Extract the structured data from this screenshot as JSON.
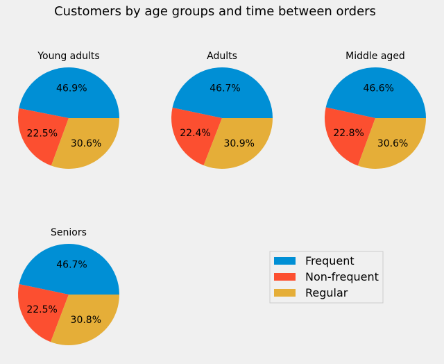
{
  "chart_data": {
    "type": "pie",
    "title": "Customers by age groups and time between orders",
    "legend": {
      "placement": "lower-right",
      "entries": [
        "Frequent",
        "Non-frequent",
        "Regular"
      ]
    },
    "colors": {
      "Frequent": "#008fd5",
      "Non-frequent": "#fc4f30",
      "Regular": "#e5ae38",
      "background": "#f0f0f0"
    },
    "categories": [
      "Frequent",
      "Non-frequent",
      "Regular"
    ],
    "pies": [
      {
        "title": "Young adults",
        "values": [
          46.9,
          22.5,
          30.6
        ],
        "labels": [
          "46.9%",
          "22.5%",
          "30.6%"
        ]
      },
      {
        "title": "Adults",
        "values": [
          46.7,
          22.4,
          30.9
        ],
        "labels": [
          "46.7%",
          "22.4%",
          "30.9%"
        ]
      },
      {
        "title": "Middle aged",
        "values": [
          46.6,
          22.8,
          30.6
        ],
        "labels": [
          "46.6%",
          "22.8%",
          "30.6%"
        ]
      },
      {
        "title": "Seniors",
        "values": [
          46.7,
          22.5,
          30.8
        ],
        "labels": [
          "46.7%",
          "22.5%",
          "30.8%"
        ]
      }
    ]
  }
}
